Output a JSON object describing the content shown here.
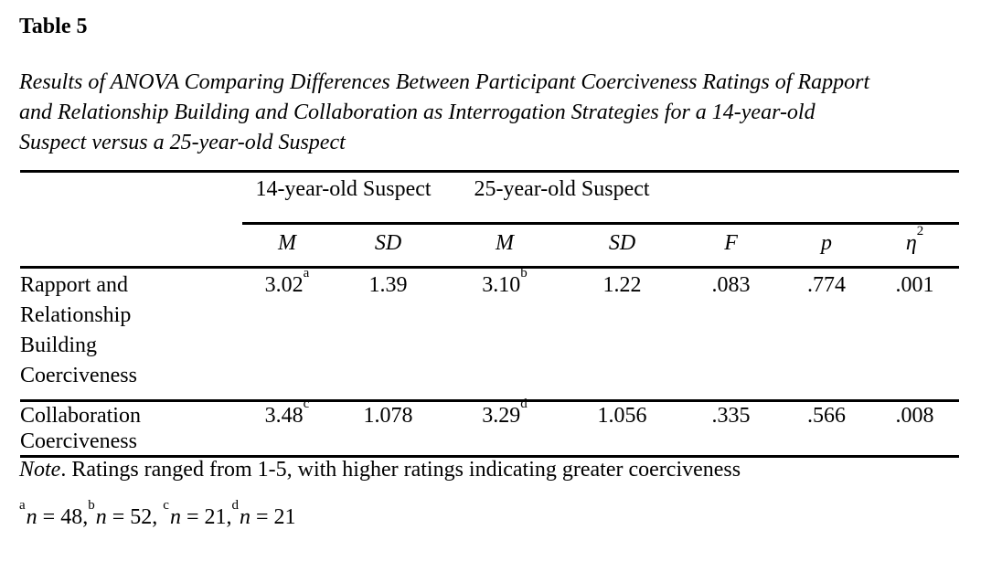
{
  "style": {
    "background": "#ffffff",
    "text_color": "#000000",
    "rule_color": "#000000"
  },
  "page": {
    "title": "Table 5",
    "caption_lines": [
      "Results of ANOVA Comparing Differences Between Participant Coerciveness Ratings of Rapport",
      "and Relationship Building and Collaboration as Interrogation Strategies for a 14-year-old",
      "Suspect versus a 25-year-old Suspect"
    ]
  },
  "table": {
    "spanners": [
      {
        "label": "14-year-old Suspect"
      },
      {
        "label": "25-year-old Suspect"
      }
    ],
    "columns": [
      {
        "key": "m-14",
        "label": "M",
        "italic": true
      },
      {
        "key": "sd-14",
        "label": "SD",
        "italic": true
      },
      {
        "key": "m-25",
        "label": "M",
        "italic": true
      },
      {
        "key": "sd-25",
        "label": "SD",
        "italic": true
      },
      {
        "key": "f",
        "label": "F",
        "italic": true
      },
      {
        "key": "p",
        "label": "p",
        "italic": true
      },
      {
        "key": "eta-squared",
        "label": "η",
        "sup": "2",
        "italic": true
      }
    ],
    "rows": [
      {
        "label": "Rapport and Relationship Building Coerciveness",
        "stub_lines": [
          "Rapport and",
          "Relationship",
          "Building",
          "Coerciveness"
        ],
        "cells": [
          {
            "v": "3.02",
            "sup": "a"
          },
          {
            "v": "1.39"
          },
          {
            "v": "3.10",
            "sup": "b"
          },
          {
            "v": "1.22"
          },
          {
            "v": ".083"
          },
          {
            "v": ".774"
          },
          {
            "v": ".001"
          }
        ]
      },
      {
        "label": "Collaboration Coerciveness",
        "stub_lines": [
          "Collaboration",
          "Coerciveness"
        ],
        "cells": [
          {
            "v": "3.48",
            "sup": "c"
          },
          {
            "v": "1.078"
          },
          {
            "v": "3.29",
            "sup": "d"
          },
          {
            "v": "1.056"
          },
          {
            "v": ".335"
          },
          {
            "v": ".566"
          },
          {
            "v": ".008"
          }
        ]
      }
    ],
    "note": {
      "lead_in": "Note",
      "body": ". Ratings ranged from 1-5, with higher ratings indicating greater coerciveness"
    },
    "footnotes": [
      {
        "marker": "a",
        "symbol": "n",
        "value": " = 48,"
      },
      {
        "marker": "b",
        "symbol": "n",
        "value": " = 52, "
      },
      {
        "marker": "c",
        "symbol": "n",
        "value": " = 21,"
      },
      {
        "marker": "d",
        "symbol": "n",
        "value": " = 21"
      }
    ]
  }
}
